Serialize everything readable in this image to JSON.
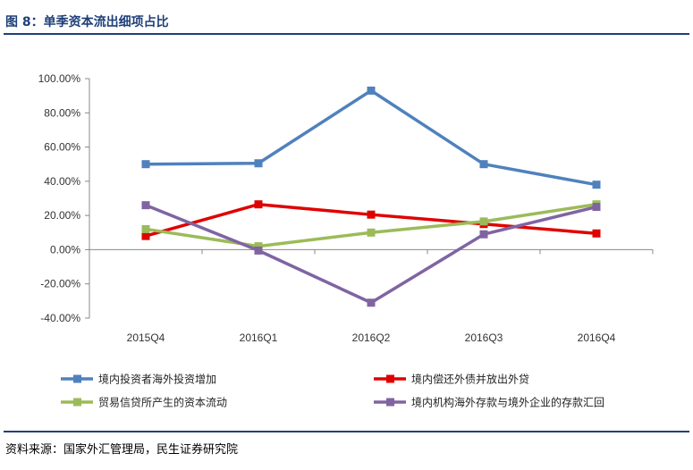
{
  "figure": {
    "title": "图 8：单季资本流出细项占比",
    "source": "资料来源：国家外汇管理局，民生证券研究院"
  },
  "chart_data": {
    "type": "line",
    "title": "",
    "xlabel": "",
    "ylabel": "",
    "categories": [
      "2015Q4",
      "2016Q1",
      "2016Q2",
      "2016Q3",
      "2016Q4"
    ],
    "ylim": [
      -40,
      100
    ],
    "yticks": [
      100,
      80,
      60,
      40,
      20,
      0,
      -20,
      -40
    ],
    "ytick_labels": [
      "100.00%",
      "80.00%",
      "60.00%",
      "40.00%",
      "20.00%",
      "0.00%",
      "-20.00%",
      "-40.00%"
    ],
    "grid": false,
    "legend_position": "bottom",
    "series": [
      {
        "name": "境内投资者海外投资增加",
        "color": "#4f81bd",
        "values": [
          50,
          50.5,
          93,
          50,
          38
        ]
      },
      {
        "name": "境内偿还外债并放出外贷",
        "color": "#e00000",
        "values": [
          8,
          26.5,
          20.5,
          15,
          9.5
        ]
      },
      {
        "name": "贸易信贷所产生的资本流动",
        "color": "#9bbb59",
        "values": [
          12,
          2,
          10,
          16.5,
          26.5
        ]
      },
      {
        "name": "境内机构海外存款与境外企业的存款汇回",
        "color": "#8064a2",
        "values": [
          26,
          -0.5,
          -31,
          9,
          25
        ]
      }
    ]
  }
}
